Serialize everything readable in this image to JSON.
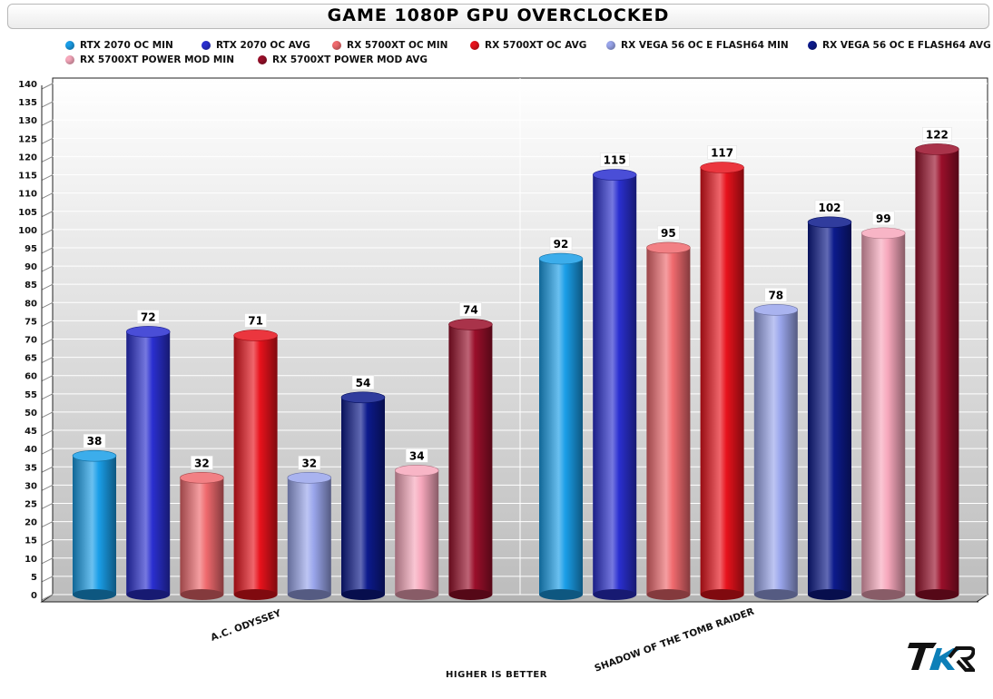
{
  "chart_data": {
    "type": "bar",
    "title": "Game 1080P GPU Overclocked",
    "xlabel": "Higher is better",
    "ylabel": "",
    "ylim": [
      0,
      140
    ],
    "yticks": [
      "0",
      "5",
      "10",
      "15",
      "20",
      "25",
      "30",
      "35",
      "40",
      "45",
      "50",
      "55",
      "60",
      "65",
      "70",
      "75",
      "80",
      "85",
      "90",
      "95",
      "100",
      "105",
      "110",
      "115",
      "120",
      "125",
      "130",
      "135",
      "140"
    ],
    "grid": true,
    "legend_position": "top",
    "categories": [
      "A.C. Odyssey",
      "Shadow of the Tomb Raider"
    ],
    "series": [
      {
        "name": "RTX 2070 OC MIN",
        "color": "#1a9ee8",
        "values": [
          38,
          92
        ]
      },
      {
        "name": "RTX 2070 OC AVG",
        "color": "#2a2fd0",
        "values": [
          72,
          115
        ]
      },
      {
        "name": "RX 5700XT OC MIN",
        "color": "#f06a6e",
        "values": [
          32,
          95
        ]
      },
      {
        "name": "RX 5700XT OC AVG",
        "color": "#e8121c",
        "values": [
          71,
          117
        ]
      },
      {
        "name": "RX VEGA 56 OC E FLASH64 MIN",
        "color": "#9aa6ec",
        "values": [
          32,
          78
        ]
      },
      {
        "name": "RX VEGA 56 OC E FLASH64 AVG",
        "color": "#0c1a8c",
        "values": [
          54,
          102
        ]
      },
      {
        "name": "RX 5700XT POWER MOD MIN",
        "color": "#f7a8bc",
        "values": [
          34,
          99
        ]
      },
      {
        "name": "RX 5700XT POWER MOD AVG",
        "color": "#9a0f2a",
        "values": [
          74,
          122
        ]
      }
    ]
  },
  "logo": {
    "text": "TKR"
  }
}
